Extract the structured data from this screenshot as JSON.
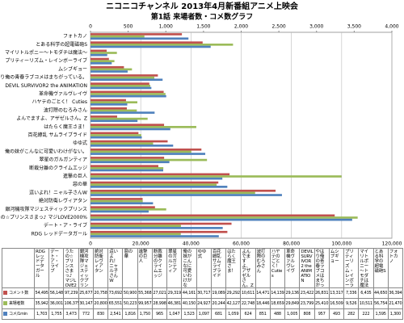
{
  "chart_data": {
    "type": "bar",
    "title": "ニコニコチャンネル 2013年4月新番組アニメ上映会",
    "subtitle": "第1話 来場者数・コメ数グラフ",
    "categories": [
      "RDG レッドデータガール",
      "デート・ア・ライブ",
      "うたの☆プリンスさまっ♪ マジLOVE2000%",
      "銀河機攻隊マジェスティックプリンス",
      "絶対防衛レヴィアタン",
      "這いよれ！ニャル子さんW",
      "惡の華",
      "進撃の巨人",
      "断裁分離のクライムエッジ",
      "翠星のガルガンティア",
      "俺の妹がこんなに可愛いわけがない。",
      "ゆゆ式",
      "百花繚乱 サムライブライド",
      "はたらく魔王さま！",
      "よんでますよ、アザゼルさん。Z",
      "波打際のむろみさん",
      "ハヤテのごとく！ Cuties",
      "革命機ヴァルヴレイヴ",
      "DEVIL SURVIVOR2 the ANIMATION",
      "やはり俺の青春ラブコメはまちがっている。",
      "ムシブギョー",
      "プリティーリズム・レインボーライブ",
      "マイリトルポニー～トモダチは魔法～",
      "とある科学の超電磁砲S",
      "フォトカノ"
    ],
    "series": [
      {
        "name": "コメント数",
        "color": "#c0504d",
        "values": [
          54495,
          56148,
          97239,
          25677,
          20758,
          73692,
          50900,
          55368,
          27021,
          29319,
          44161,
          30717,
          19089,
          29292,
          10611,
          14471,
          14139,
          29136,
          23422,
          26831,
          13317,
          7336,
          6435,
          44650,
          36394
        ],
        "value_labels": [
          "54,495",
          "56,148",
          "97,239",
          "25,677",
          "20,758",
          "73,692",
          "50,900",
          "55,368",
          "27,021",
          "29,319",
          "44,161",
          "30,717",
          "19,089",
          "29,292",
          "10,611",
          "14,471",
          "14,139",
          "29,136",
          "23,422",
          "26,831",
          "13,317",
          "7,336",
          "6,435",
          "44,650",
          "36,394"
        ]
      },
      {
        "name": "来場者数",
        "color": "#9bbb59",
        "values": [
          35942,
          36001,
          106375,
          30147,
          20800,
          65551,
          50223,
          99957,
          28998,
          46381,
          40150,
          24927,
          20244,
          42127,
          22748,
          18446,
          18659,
          29849,
          23799,
          25410,
          16509,
          9526,
          10511,
          56754,
          21470
        ],
        "value_labels": [
          "35,942",
          "36,001",
          "106,375",
          "30,147",
          "20,800",
          "65,551",
          "50,223",
          "99,957",
          "28,998",
          "46,381",
          "40,150",
          "24,927",
          "20,244",
          "42,127",
          "22,748",
          "18,446",
          "18,659",
          "29,849",
          "23,799",
          "25,410",
          "16,509",
          "9,526",
          "10,511",
          "56,754",
          "21,470"
        ]
      },
      {
        "name": "コメ/1min",
        "color": "#4f81bd",
        "axis": "x2",
        "values": [
          1703,
          1755,
          3473,
          772,
          830,
          2541,
          1816,
          1750,
          965,
          1047,
          1523,
          1097,
          681,
          1059,
          624,
          851,
          488,
          1005,
          808,
          957,
          493,
          282,
          222,
          1595,
          1300
        ],
        "value_labels": [
          "1,703",
          "1,755",
          "3,473",
          "772",
          "830",
          "2,541",
          "1,816",
          "1,750",
          "965",
          "1,047",
          "1,523",
          "1,097",
          "681",
          "1,059",
          "624",
          "851",
          "488",
          "1,005",
          "808",
          "957",
          "493",
          "282",
          "222",
          "1,595",
          "1,300"
        ]
      }
    ],
    "xlim": [
      0,
      120000
    ],
    "xticks": [
      0,
      {
        "value": 20000,
        "label": "20,000"
      },
      {
        "value": 40000,
        "label": "40,000"
      },
      {
        "value": 60000,
        "label": "60,000"
      },
      {
        "value": 80000,
        "label": "80,000"
      },
      {
        "value": 100000,
        "label": "100,000"
      },
      {
        "value": 120000,
        "label": "120,000"
      }
    ],
    "x2lim": [
      0,
      4000
    ],
    "x2ticks": [
      0,
      500,
      {
        "value": 1000,
        "label": "1,000"
      },
      {
        "value": 1500,
        "label": "1,500"
      },
      {
        "value": 2000,
        "label": "2,000"
      },
      {
        "value": 2500,
        "label": "2,500"
      },
      {
        "value": 3000,
        "label": "3,000"
      },
      {
        "value": 3500,
        "label": "3,500"
      },
      {
        "value": 4000,
        "label": "4,000"
      }
    ],
    "grid": true
  }
}
